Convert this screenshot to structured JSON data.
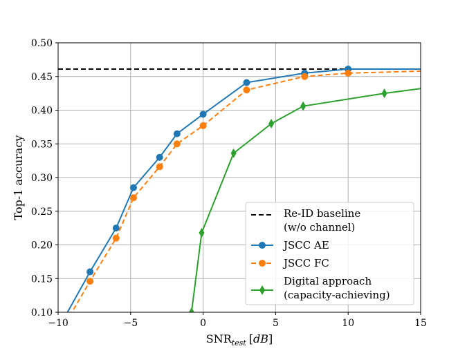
{
  "chart_data": {
    "type": "line",
    "title": "",
    "xlabel_main": "SNR",
    "xlabel_sub": "test",
    "xlabel_unit": "[dB]",
    "ylabel": "Top-1 accuracy",
    "xlim": [
      -10,
      15
    ],
    "ylim": [
      0.1,
      0.5
    ],
    "xticks": [
      -10,
      -5,
      0,
      5,
      10,
      15
    ],
    "xtick_labels": [
      "−10",
      "−5",
      "0",
      "5",
      "10",
      "15"
    ],
    "yticks": [
      0.1,
      0.15,
      0.2,
      0.25,
      0.3,
      0.35,
      0.4,
      0.45,
      0.5
    ],
    "ytick_labels": [
      "0.10",
      "0.15",
      "0.20",
      "0.25",
      "0.30",
      "0.35",
      "0.40",
      "0.45",
      "0.50"
    ],
    "grid": true,
    "legend_position": "lower-right",
    "series": [
      {
        "name": "Re-ID baseline\n(w/o channel)",
        "legend_lines": [
          "Re-ID baseline",
          "(w/o channel)"
        ],
        "color": "#000000",
        "style": "dashed",
        "marker": "none",
        "x": [
          -10,
          15
        ],
        "y": [
          0.461,
          0.461
        ]
      },
      {
        "name": "JSCC AE",
        "legend_lines": [
          "JSCC AE"
        ],
        "color": "#1f77b4",
        "style": "solid",
        "marker": "circle",
        "x": [
          -10,
          -7.8,
          -6,
          -4.8,
          -3,
          -1.8,
          0,
          3,
          7,
          10,
          15
        ],
        "y": [
          0.075,
          0.16,
          0.225,
          0.285,
          0.33,
          0.365,
          0.394,
          0.441,
          0.455,
          0.461,
          0.461
        ]
      },
      {
        "name": "JSCC FC",
        "legend_lines": [
          "JSCC FC"
        ],
        "color": "#ff7f0e",
        "style": "dashed",
        "marker": "circle",
        "x": [
          -10,
          -7.8,
          -6,
          -4.8,
          -3,
          -1.8,
          0,
          3,
          7,
          10,
          15
        ],
        "y": [
          0.065,
          0.146,
          0.21,
          0.27,
          0.316,
          0.35,
          0.377,
          0.43,
          0.45,
          0.455,
          0.458
        ]
      },
      {
        "name": "Digital approach\n(capacity-achieving)",
        "legend_lines": [
          "Digital approach",
          "(capacity-achieving)"
        ],
        "color": "#2ca02c",
        "style": "solid",
        "marker": "diamond",
        "x": [
          -0.8,
          -0.1,
          2.1,
          4.7,
          6.9,
          12.5,
          15
        ],
        "y": [
          0.1,
          0.218,
          0.336,
          0.38,
          0.406,
          0.425,
          0.432
        ]
      }
    ]
  }
}
